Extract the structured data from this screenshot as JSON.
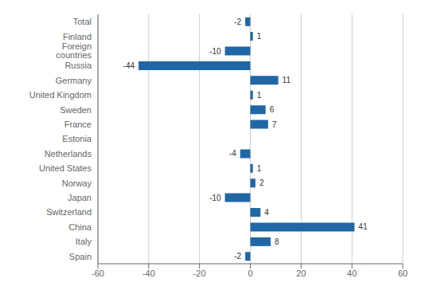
{
  "chart_data": {
    "type": "bar",
    "orientation": "horizontal",
    "categories": [
      "Spain",
      "Italy",
      "China",
      "Switzerland",
      "Japan",
      "Norway",
      "United States",
      "Netherlands",
      "Estonia",
      "France",
      "Sweden",
      "United Kingdom",
      "Germany",
      "Russia",
      "Foreign countries",
      "Finland",
      "Total"
    ],
    "values": [
      -2,
      8,
      41,
      4,
      -10,
      2,
      1,
      -4,
      0,
      7,
      6,
      1,
      11,
      -44,
      -10,
      1,
      -2
    ],
    "color": "#2167a6",
    "xlim": [
      -60,
      60
    ],
    "xticks": [
      -60,
      -40,
      -20,
      0,
      20,
      40,
      60
    ],
    "grid": true,
    "data_labels": true
  }
}
